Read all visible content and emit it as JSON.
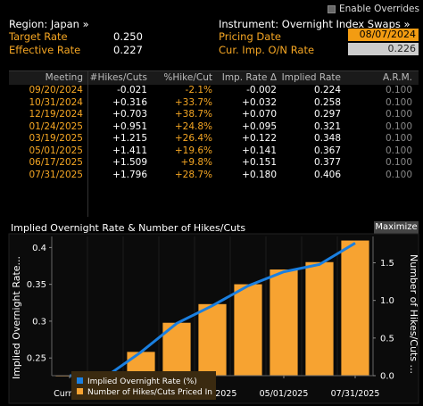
{
  "options": {
    "enable_overrides": "Enable Overrides"
  },
  "info": {
    "region": "Region: Japan »",
    "instrument": "Instrument: Overnight Index Swaps »",
    "target_rate_label": "Target Rate",
    "target_rate_value": "0.250",
    "effective_rate_label": "Effective Rate",
    "effective_rate_value": "0.227",
    "pricing_date_label": "Pricing Date",
    "pricing_date_value": "08/07/2024",
    "cur_imp_label": "Cur. Imp. O/N Rate",
    "cur_imp_value": "0.226"
  },
  "table": {
    "headers": [
      "Meeting",
      "#Hikes/Cuts",
      "%Hike/Cut",
      "Imp. Rate Δ",
      "Implied Rate",
      "A.R.M."
    ],
    "rows": [
      [
        "09/20/2024",
        "-0.021",
        "-2.1%",
        "-0.002",
        "0.224",
        "0.100"
      ],
      [
        "10/31/2024",
        "+0.316",
        "+33.7%",
        "+0.032",
        "0.258",
        "0.100"
      ],
      [
        "12/19/2024",
        "+0.703",
        "+38.7%",
        "+0.070",
        "0.297",
        "0.100"
      ],
      [
        "01/24/2025",
        "+0.951",
        "+24.8%",
        "+0.095",
        "0.321",
        "0.100"
      ],
      [
        "03/19/2025",
        "+1.215",
        "+26.4%",
        "+0.122",
        "0.348",
        "0.100"
      ],
      [
        "05/01/2025",
        "+1.411",
        "+19.6%",
        "+0.141",
        "0.367",
        "0.100"
      ],
      [
        "06/17/2025",
        "+1.509",
        "+9.8%",
        "+0.151",
        "0.377",
        "0.100"
      ],
      [
        "07/31/2025",
        "+1.796",
        "+28.7%",
        "+0.180",
        "0.406",
        "0.100"
      ]
    ]
  },
  "chart": {
    "title": "Implied Overnight Rate & Number of Hikes/Cuts",
    "maximize": "Maximize",
    "y_left_label": "Implied Overnight Rate...",
    "y_right_label": "Number of Hikes/Cuts ...",
    "legend_line": "Implied Overnight Rate (%)",
    "legend_bar": "Number of Hikes/Cuts Priced In",
    "line_color": "#1a7fe0",
    "bar_color": "#f7a331"
  },
  "chart_data": {
    "type": "bar",
    "categories": [
      "Current",
      "09/20/2024",
      "10/31/2024",
      "12/19/2024",
      "01/24/2025",
      "03/19/2025",
      "05/01/2025",
      "06/17/2025",
      "07/31/2025"
    ],
    "x_tick_labels": [
      "Current",
      "10/31/2024",
      "01/24/2025",
      "05/01/2025",
      "07/31/2025"
    ],
    "series": [
      {
        "name": "Number of Hikes/Cuts Priced In",
        "type": "bar",
        "axis": "right",
        "values": [
          0,
          -0.021,
          0.316,
          0.703,
          0.951,
          1.215,
          1.411,
          1.509,
          1.796
        ]
      },
      {
        "name": "Implied Overnight Rate (%)",
        "type": "line",
        "axis": "left",
        "values": [
          0.226,
          0.224,
          0.258,
          0.297,
          0.321,
          0.348,
          0.367,
          0.377,
          0.406
        ]
      }
    ],
    "y_left": {
      "min": 0.226,
      "max": 0.415,
      "ticks": [
        "0.25",
        "0.3",
        "0.35",
        "0.4"
      ],
      "tick_values": [
        0.25,
        0.3,
        0.35,
        0.4
      ]
    },
    "y_right": {
      "min": 0,
      "max": 1.85,
      "ticks": [
        "0.0",
        "0.5",
        "1.0",
        "1.5"
      ],
      "tick_values": [
        0,
        0.5,
        1.0,
        1.5
      ]
    },
    "legend": "bottom-left"
  }
}
